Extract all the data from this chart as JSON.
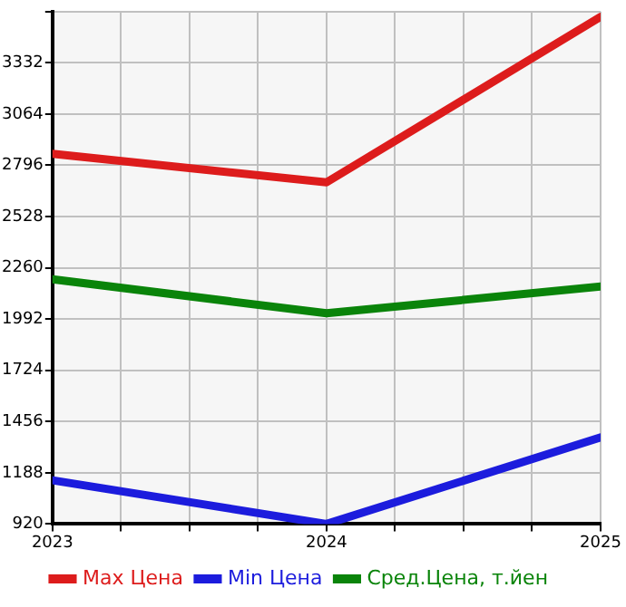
{
  "chart_data": {
    "type": "line",
    "x": [
      2023,
      2024,
      2025
    ],
    "xlim": [
      2023,
      2025
    ],
    "xticks": [
      2023,
      {
        "value": 2023.25,
        "label": null
      },
      {
        "value": 2023.5,
        "label": null
      },
      {
        "value": 2023.75,
        "label": null
      },
      2024,
      {
        "value": 2024.25,
        "label": null
      },
      {
        "value": 2024.5,
        "label": null
      },
      {
        "value": 2024.75,
        "label": null
      },
      2025
    ],
    "ylim": [
      920,
      3600
    ],
    "yticks": [
      920,
      1188,
      1456,
      1724,
      1992,
      2260,
      2528,
      2796,
      3064,
      3332,
      {
        "value": 3600,
        "label": null
      }
    ],
    "grid": true,
    "legend": "bottom",
    "marker": "none",
    "line_style": "solid",
    "series": [
      {
        "name": "Max Цена",
        "color": "#dd1c1c",
        "values": [
          2856,
          2707,
          3573
        ]
      },
      {
        "name": "Min Цена",
        "color": "#1c1cdd",
        "values": [
          1149,
          920,
          1373
        ]
      },
      {
        "name": "Сред.Цена, т.йен",
        "color": "#0a840a",
        "values": [
          2200,
          2022,
          2162
        ]
      }
    ]
  }
}
